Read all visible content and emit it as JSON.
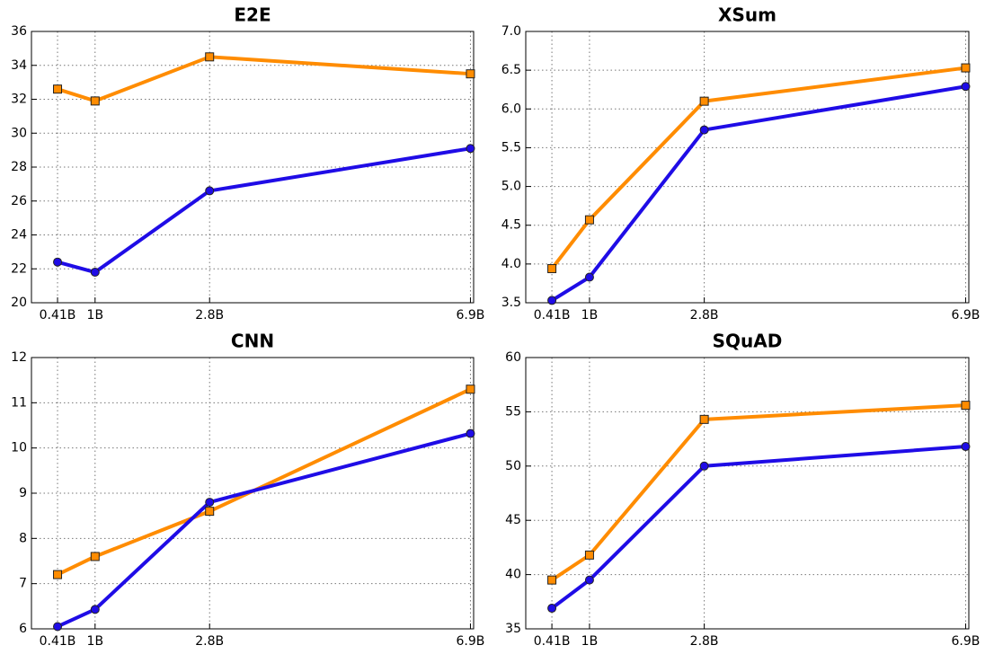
{
  "chart_data": [
    {
      "type": "line",
      "title": "E2E",
      "x": [
        0.41,
        1,
        2.8,
        6.9
      ],
      "xlim": [
        0,
        6.95
      ],
      "xticks": [
        {
          "value": 0.41,
          "label": "0.41B"
        },
        {
          "value": 1,
          "label": "1B"
        },
        {
          "value": 2.8,
          "label": "2.8B"
        },
        {
          "value": 6.9,
          "label": "6.9B"
        }
      ],
      "ylim": [
        20,
        36
      ],
      "yticks": [
        20,
        22,
        24,
        26,
        28,
        30,
        32,
        34,
        36
      ],
      "grid": true,
      "series": [
        {
          "color": "#ff8c00",
          "marker": "square",
          "values": [
            32.6,
            31.9,
            34.5,
            33.5
          ]
        },
        {
          "color": "#1f0ce6",
          "marker": "circle",
          "values": [
            22.4,
            21.8,
            26.6,
            29.1
          ]
        }
      ]
    },
    {
      "type": "line",
      "title": "XSum",
      "x": [
        0.41,
        1,
        2.8,
        6.9
      ],
      "xlim": [
        0,
        6.95
      ],
      "xticks": [
        {
          "value": 0.41,
          "label": "0.41B"
        },
        {
          "value": 1,
          "label": "1B"
        },
        {
          "value": 2.8,
          "label": "2.8B"
        },
        {
          "value": 6.9,
          "label": "6.9B"
        }
      ],
      "ylim": [
        3.5,
        7.0
      ],
      "yticks": [
        3.5,
        {
          "value": 4,
          "label": "4.0"
        },
        4.5,
        {
          "value": 5,
          "label": "5.0"
        },
        5.5,
        {
          "value": 6,
          "label": "6.0"
        },
        6.5,
        {
          "value": 7,
          "label": "7.0"
        }
      ],
      "grid": true,
      "series": [
        {
          "color": "#ff8c00",
          "marker": "square",
          "values": [
            3.94,
            4.57,
            6.1,
            6.53
          ]
        },
        {
          "color": "#1f0ce6",
          "marker": "circle",
          "values": [
            3.53,
            3.83,
            5.73,
            6.29
          ]
        }
      ]
    },
    {
      "type": "line",
      "title": "CNN",
      "x": [
        0.41,
        1,
        2.8,
        6.9
      ],
      "xlim": [
        0,
        6.95
      ],
      "xticks": [
        {
          "value": 0.41,
          "label": "0.41B"
        },
        {
          "value": 1,
          "label": "1B"
        },
        {
          "value": 2.8,
          "label": "2.8B"
        },
        {
          "value": 6.9,
          "label": "6.9B"
        }
      ],
      "ylim": [
        6,
        12
      ],
      "yticks": [
        6,
        7,
        8,
        9,
        10,
        11,
        12
      ],
      "grid": true,
      "series": [
        {
          "color": "#ff8c00",
          "marker": "square",
          "values": [
            7.2,
            7.6,
            8.6,
            11.3
          ]
        },
        {
          "color": "#1f0ce6",
          "marker": "circle",
          "values": [
            6.05,
            6.43,
            8.8,
            10.32
          ]
        }
      ]
    },
    {
      "type": "line",
      "title": "SQuAD",
      "x": [
        0.41,
        1,
        2.8,
        6.9
      ],
      "xlim": [
        0,
        6.95
      ],
      "xticks": [
        {
          "value": 0.41,
          "label": "0.41B"
        },
        {
          "value": 1,
          "label": "1B"
        },
        {
          "value": 2.8,
          "label": "2.8B"
        },
        {
          "value": 6.9,
          "label": "6.9B"
        }
      ],
      "ylim": [
        35,
        60
      ],
      "yticks": [
        35,
        40,
        45,
        50,
        55,
        60
      ],
      "grid": true,
      "series": [
        {
          "color": "#ff8c00",
          "marker": "square",
          "values": [
            39.5,
            41.8,
            54.3,
            55.6
          ]
        },
        {
          "color": "#1f0ce6",
          "marker": "circle",
          "values": [
            36.9,
            39.5,
            50.0,
            51.8
          ]
        }
      ]
    }
  ]
}
